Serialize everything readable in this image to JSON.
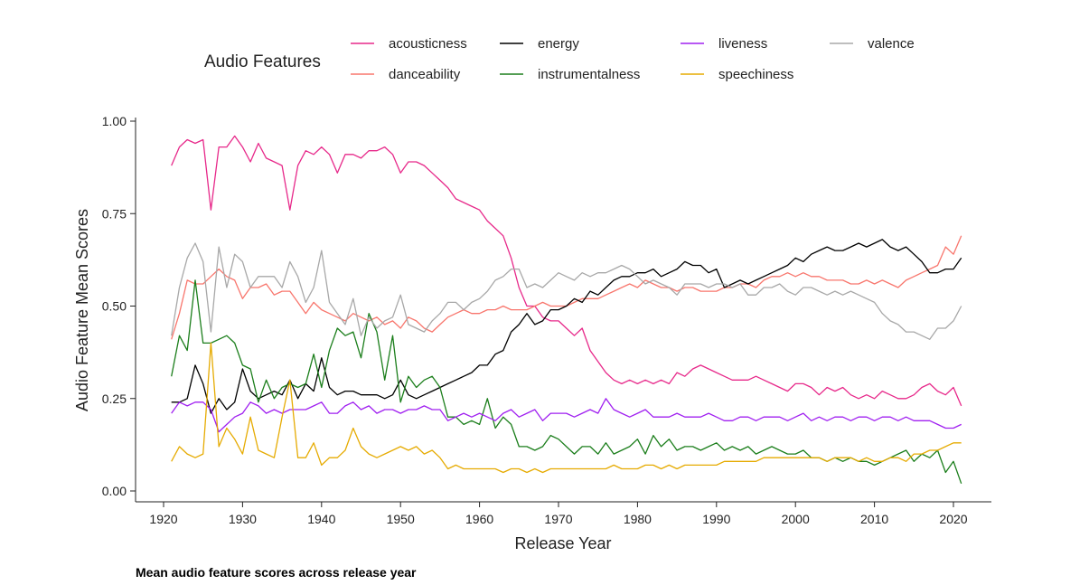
{
  "chart_data": {
    "type": "line",
    "title": "",
    "caption": "Mean audio feature scores across release year",
    "xlabel": "Release Year",
    "ylabel": "Audio Feature Mean Scores",
    "legend_title": "Audio Features",
    "legend_position": "top",
    "grid": false,
    "xlim": [
      1920,
      2020
    ],
    "ylim": [
      0,
      1
    ],
    "x_ticks": [
      1920,
      1930,
      1940,
      1950,
      1960,
      1970,
      1980,
      1990,
      2000,
      2010,
      2020
    ],
    "y_ticks": [
      "0.00",
      "0.25",
      "0.50",
      "0.75",
      "1.00"
    ],
    "x_start": 1921,
    "series": [
      {
        "name": "acousticness",
        "color": "#e7298a",
        "values": [
          0.88,
          0.93,
          0.95,
          0.94,
          0.95,
          0.76,
          0.93,
          0.93,
          0.96,
          0.93,
          0.89,
          0.94,
          0.9,
          0.89,
          0.88,
          0.76,
          0.88,
          0.92,
          0.91,
          0.93,
          0.91,
          0.86,
          0.91,
          0.91,
          0.9,
          0.92,
          0.92,
          0.93,
          0.91,
          0.86,
          0.89,
          0.89,
          0.88,
          0.86,
          0.84,
          0.82,
          0.79,
          0.78,
          0.77,
          0.76,
          0.73,
          0.71,
          0.69,
          0.63,
          0.55,
          0.5,
          0.5,
          0.47,
          0.46,
          0.46,
          0.44,
          0.42,
          0.44,
          0.38,
          0.35,
          0.32,
          0.3,
          0.29,
          0.3,
          0.29,
          0.3,
          0.29,
          0.3,
          0.29,
          0.32,
          0.31,
          0.33,
          0.34,
          0.33,
          0.32,
          0.31,
          0.3,
          0.3,
          0.3,
          0.31,
          0.3,
          0.29,
          0.28,
          0.27,
          0.29,
          0.29,
          0.28,
          0.26,
          0.28,
          0.27,
          0.28,
          0.26,
          0.25,
          0.26,
          0.25,
          0.27,
          0.26,
          0.25,
          0.25,
          0.26,
          0.28,
          0.29,
          0.27,
          0.26,
          0.28,
          0.23
        ]
      },
      {
        "name": "danceability",
        "color": "#f8766d",
        "values": [
          0.41,
          0.48,
          0.57,
          0.56,
          0.56,
          0.58,
          0.6,
          0.58,
          0.57,
          0.52,
          0.55,
          0.55,
          0.56,
          0.53,
          0.54,
          0.54,
          0.51,
          0.48,
          0.51,
          0.49,
          0.48,
          0.47,
          0.46,
          0.48,
          0.47,
          0.46,
          0.47,
          0.45,
          0.46,
          0.44,
          0.47,
          0.46,
          0.44,
          0.43,
          0.45,
          0.47,
          0.48,
          0.49,
          0.48,
          0.48,
          0.49,
          0.49,
          0.5,
          0.49,
          0.49,
          0.49,
          0.5,
          0.51,
          0.5,
          0.5,
          0.5,
          0.51,
          0.52,
          0.52,
          0.52,
          0.53,
          0.54,
          0.55,
          0.56,
          0.55,
          0.57,
          0.56,
          0.55,
          0.55,
          0.54,
          0.55,
          0.55,
          0.54,
          0.54,
          0.54,
          0.55,
          0.55,
          0.56,
          0.56,
          0.55,
          0.57,
          0.58,
          0.58,
          0.59,
          0.58,
          0.59,
          0.58,
          0.58,
          0.57,
          0.57,
          0.57,
          0.56,
          0.56,
          0.57,
          0.56,
          0.57,
          0.56,
          0.55,
          0.57,
          0.58,
          0.59,
          0.6,
          0.61,
          0.66,
          0.64,
          0.69
        ]
      },
      {
        "name": "energy",
        "color": "#000000",
        "values": [
          0.24,
          0.24,
          0.25,
          0.34,
          0.29,
          0.21,
          0.25,
          0.22,
          0.24,
          0.33,
          0.27,
          0.25,
          0.26,
          0.27,
          0.26,
          0.3,
          0.25,
          0.29,
          0.27,
          0.36,
          0.28,
          0.26,
          0.27,
          0.27,
          0.26,
          0.26,
          0.26,
          0.25,
          0.26,
          0.3,
          0.26,
          0.25,
          0.26,
          0.27,
          0.28,
          0.29,
          0.3,
          0.31,
          0.32,
          0.34,
          0.34,
          0.37,
          0.38,
          0.43,
          0.45,
          0.48,
          0.45,
          0.46,
          0.49,
          0.49,
          0.5,
          0.52,
          0.51,
          0.54,
          0.53,
          0.55,
          0.57,
          0.58,
          0.58,
          0.59,
          0.59,
          0.6,
          0.58,
          0.59,
          0.6,
          0.62,
          0.61,
          0.61,
          0.59,
          0.6,
          0.55,
          0.56,
          0.57,
          0.56,
          0.57,
          0.58,
          0.59,
          0.6,
          0.61,
          0.63,
          0.62,
          0.64,
          0.65,
          0.66,
          0.65,
          0.65,
          0.66,
          0.67,
          0.66,
          0.67,
          0.68,
          0.66,
          0.65,
          0.66,
          0.64,
          0.62,
          0.59,
          0.59,
          0.6,
          0.6,
          0.63
        ]
      },
      {
        "name": "instrumentalness",
        "color": "#1b7e1b",
        "values": [
          0.31,
          0.42,
          0.38,
          0.57,
          0.4,
          0.4,
          0.41,
          0.42,
          0.4,
          0.34,
          0.33,
          0.24,
          0.3,
          0.25,
          0.28,
          0.29,
          0.28,
          0.29,
          0.37,
          0.28,
          0.38,
          0.44,
          0.42,
          0.43,
          0.36,
          0.48,
          0.43,
          0.3,
          0.42,
          0.24,
          0.31,
          0.28,
          0.3,
          0.31,
          0.28,
          0.2,
          0.2,
          0.18,
          0.19,
          0.18,
          0.25,
          0.17,
          0.2,
          0.18,
          0.12,
          0.12,
          0.11,
          0.12,
          0.15,
          0.14,
          0.12,
          0.1,
          0.12,
          0.12,
          0.1,
          0.13,
          0.1,
          0.11,
          0.12,
          0.14,
          0.1,
          0.15,
          0.12,
          0.14,
          0.11,
          0.12,
          0.12,
          0.11,
          0.12,
          0.13,
          0.11,
          0.12,
          0.11,
          0.12,
          0.1,
          0.11,
          0.12,
          0.11,
          0.1,
          0.1,
          0.11,
          0.09,
          0.09,
          0.08,
          0.09,
          0.08,
          0.09,
          0.08,
          0.08,
          0.07,
          0.08,
          0.09,
          0.1,
          0.11,
          0.08,
          0.1,
          0.09,
          0.11,
          0.05,
          0.08,
          0.02
        ]
      },
      {
        "name": "liveness",
        "color": "#a020f0",
        "values": [
          0.21,
          0.24,
          0.23,
          0.24,
          0.24,
          0.22,
          0.16,
          0.18,
          0.2,
          0.21,
          0.24,
          0.23,
          0.21,
          0.22,
          0.21,
          0.22,
          0.22,
          0.22,
          0.23,
          0.24,
          0.21,
          0.21,
          0.23,
          0.24,
          0.22,
          0.23,
          0.21,
          0.22,
          0.22,
          0.21,
          0.22,
          0.22,
          0.23,
          0.22,
          0.22,
          0.19,
          0.2,
          0.21,
          0.2,
          0.21,
          0.2,
          0.19,
          0.21,
          0.22,
          0.2,
          0.21,
          0.22,
          0.19,
          0.21,
          0.21,
          0.21,
          0.2,
          0.21,
          0.22,
          0.21,
          0.25,
          0.22,
          0.21,
          0.2,
          0.21,
          0.22,
          0.2,
          0.2,
          0.2,
          0.21,
          0.2,
          0.2,
          0.2,
          0.21,
          0.2,
          0.19,
          0.19,
          0.2,
          0.2,
          0.19,
          0.2,
          0.2,
          0.2,
          0.19,
          0.2,
          0.21,
          0.19,
          0.2,
          0.19,
          0.2,
          0.2,
          0.19,
          0.2,
          0.2,
          0.19,
          0.2,
          0.2,
          0.19,
          0.2,
          0.19,
          0.19,
          0.19,
          0.18,
          0.17,
          0.17,
          0.18
        ]
      },
      {
        "name": "speechiness",
        "color": "#e6ab02",
        "values": [
          0.08,
          0.12,
          0.1,
          0.09,
          0.1,
          0.4,
          0.12,
          0.17,
          0.14,
          0.1,
          0.2,
          0.11,
          0.1,
          0.09,
          0.2,
          0.3,
          0.09,
          0.09,
          0.13,
          0.07,
          0.09,
          0.09,
          0.11,
          0.17,
          0.12,
          0.1,
          0.09,
          0.1,
          0.11,
          0.12,
          0.11,
          0.12,
          0.1,
          0.11,
          0.09,
          0.06,
          0.07,
          0.06,
          0.06,
          0.06,
          0.06,
          0.06,
          0.05,
          0.06,
          0.06,
          0.05,
          0.06,
          0.05,
          0.06,
          0.06,
          0.06,
          0.06,
          0.06,
          0.06,
          0.06,
          0.06,
          0.07,
          0.06,
          0.06,
          0.06,
          0.07,
          0.07,
          0.06,
          0.07,
          0.06,
          0.07,
          0.07,
          0.07,
          0.07,
          0.07,
          0.08,
          0.08,
          0.08,
          0.08,
          0.08,
          0.09,
          0.09,
          0.09,
          0.09,
          0.09,
          0.09,
          0.09,
          0.09,
          0.08,
          0.09,
          0.09,
          0.09,
          0.08,
          0.09,
          0.08,
          0.08,
          0.09,
          0.09,
          0.08,
          0.1,
          0.1,
          0.11,
          0.11,
          0.12,
          0.13,
          0.13
        ]
      },
      {
        "name": "valence",
        "color": "#a8a8a8",
        "values": [
          0.42,
          0.55,
          0.63,
          0.67,
          0.62,
          0.43,
          0.66,
          0.55,
          0.64,
          0.62,
          0.55,
          0.58,
          0.58,
          0.58,
          0.55,
          0.62,
          0.58,
          0.51,
          0.55,
          0.65,
          0.51,
          0.48,
          0.45,
          0.52,
          0.42,
          0.47,
          0.44,
          0.46,
          0.47,
          0.53,
          0.45,
          0.44,
          0.43,
          0.46,
          0.48,
          0.51,
          0.51,
          0.49,
          0.51,
          0.52,
          0.54,
          0.57,
          0.58,
          0.6,
          0.6,
          0.55,
          0.56,
          0.55,
          0.57,
          0.59,
          0.58,
          0.57,
          0.59,
          0.58,
          0.59,
          0.59,
          0.6,
          0.61,
          0.6,
          0.58,
          0.56,
          0.57,
          0.56,
          0.55,
          0.53,
          0.56,
          0.56,
          0.56,
          0.55,
          0.56,
          0.56,
          0.55,
          0.56,
          0.53,
          0.53,
          0.55,
          0.55,
          0.56,
          0.54,
          0.53,
          0.55,
          0.55,
          0.54,
          0.53,
          0.54,
          0.53,
          0.54,
          0.53,
          0.52,
          0.51,
          0.48,
          0.46,
          0.45,
          0.43,
          0.43,
          0.42,
          0.41,
          0.44,
          0.44,
          0.46,
          0.5
        ]
      }
    ]
  }
}
